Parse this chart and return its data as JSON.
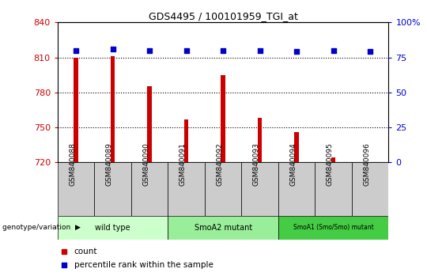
{
  "title": "GDS4495 / 100101959_TGI_at",
  "samples": [
    "GSM840088",
    "GSM840089",
    "GSM840090",
    "GSM840091",
    "GSM840092",
    "GSM840093",
    "GSM840094",
    "GSM840095",
    "GSM840096"
  ],
  "counts": [
    810,
    811,
    785,
    757,
    795,
    758,
    746,
    724,
    720
  ],
  "percentile_ranks": [
    80,
    81,
    80,
    80,
    80,
    80,
    79,
    80,
    79
  ],
  "ylim_left": [
    720,
    840
  ],
  "ylim_right": [
    0,
    100
  ],
  "yticks_left": [
    720,
    750,
    780,
    810,
    840
  ],
  "yticks_right": [
    0,
    25,
    50,
    75,
    100
  ],
  "ytick_right_labels": [
    "0",
    "25",
    "50",
    "75",
    "100%"
  ],
  "groups": [
    {
      "label": "wild type",
      "start": 0,
      "end": 3,
      "color": "#ccffcc"
    },
    {
      "label": "SmoA2 mutant",
      "start": 3,
      "end": 6,
      "color": "#99ee99"
    },
    {
      "label": "SmoA1 (Smo/Smo) mutant",
      "start": 6,
      "end": 9,
      "color": "#44cc44"
    }
  ],
  "bar_color": "#cc0000",
  "dot_color": "#0000cc",
  "tick_bg_color": "#cccccc",
  "legend_items": [
    {
      "label": "count",
      "color": "#cc0000"
    },
    {
      "label": "percentile rank within the sample",
      "color": "#0000cc"
    }
  ],
  "genotype_label": "genotype/variation",
  "ylabel_left_color": "#cc0000",
  "ylabel_right_color": "#0000cc",
  "bar_width": 0.12
}
